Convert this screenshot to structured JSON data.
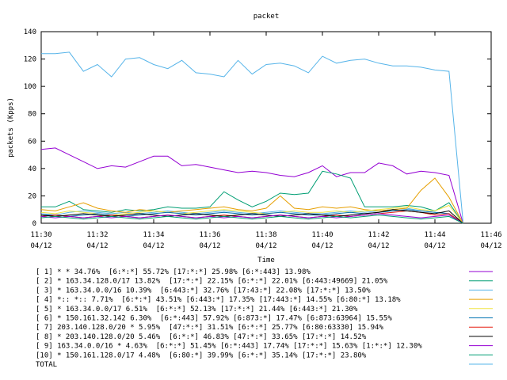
{
  "chart_data": {
    "type": "line",
    "title": "packet",
    "x_label": "Time",
    "y_label": "packets (Kpps)",
    "x": [
      "11:30",
      "11:30:30",
      "11:31",
      "11:31:30",
      "11:32",
      "11:32:30",
      "11:33",
      "11:33:30",
      "11:34",
      "11:34:30",
      "11:35",
      "11:35:30",
      "11:36",
      "11:36:30",
      "11:37",
      "11:37:30",
      "11:38",
      "11:38:30",
      "11:39",
      "11:39:30",
      "11:40",
      "11:40:30",
      "11:41",
      "11:41:30",
      "11:42",
      "11:42:30",
      "11:43",
      "11:43:30",
      "11:44",
      "11:44:30",
      "11:45"
    ],
    "xlim": [
      "11:30",
      "11:46"
    ],
    "xticks": [
      {
        "value": "11:30",
        "label": [
          "11:30",
          "04/12"
        ]
      },
      {
        "value": "11:32",
        "label": [
          "11:32",
          "04/12"
        ]
      },
      {
        "value": "11:34",
        "label": [
          "11:34",
          "04/12"
        ]
      },
      {
        "value": "11:36",
        "label": [
          "11:36",
          "04/12"
        ]
      },
      {
        "value": "11:38",
        "label": [
          "11:38",
          "04/12"
        ]
      },
      {
        "value": "11:40",
        "label": [
          "11:40",
          "04/12"
        ]
      },
      {
        "value": "11:42",
        "label": [
          "11:42",
          "04/12"
        ]
      },
      {
        "value": "11:44",
        "label": [
          "11:44",
          "04/12"
        ]
      },
      {
        "value": "11:46",
        "label": [
          "11:46",
          "04/12"
        ]
      }
    ],
    "ylim": [
      0,
      140
    ],
    "yticks": [
      0,
      20,
      40,
      60,
      80,
      100,
      120,
      140
    ],
    "grid": false,
    "series": [
      {
        "name": "[ 1] * * 34.76%  [6:*:*] 55.72% [17:*:*] 25.98% [6:*:443] 13.98%",
        "color": "#9400d3",
        "values": [
          54,
          55,
          50,
          45,
          40,
          42,
          41,
          45,
          49,
          49,
          42,
          43,
          41,
          39,
          37,
          38,
          37,
          35,
          34,
          37,
          42,
          34,
          37,
          37,
          44,
          42,
          36,
          38,
          37,
          35,
          0
        ]
      },
      {
        "name": "[ 2] * 163.34.128.0/17 13.82%  [17:*:*] 22.15% [6:*:*] 22.01% [6:443:49669] 21.05%",
        "color": "#009e73",
        "values": [
          12,
          12,
          16,
          10,
          9,
          8,
          10,
          9,
          10,
          12,
          11,
          11,
          12,
          23,
          17,
          12,
          16,
          22,
          21,
          22,
          38,
          36,
          33,
          12,
          12,
          12,
          13,
          12,
          9,
          15,
          0
        ]
      },
      {
        "name": "[ 3] * 163.34.0.0/16 10.39%  [6:443:*] 32.76% [17:43:*] 22.08% [17:*:*] 13.50%",
        "color": "#56b4e9",
        "values": [
          7,
          6,
          8,
          9,
          8,
          7,
          8,
          7,
          8,
          9,
          8,
          7,
          8,
          9,
          8,
          7,
          8,
          9,
          8,
          7,
          7,
          8,
          9,
          8,
          9,
          10,
          11,
          9,
          8,
          7,
          0
        ]
      },
      {
        "name": "[ 4] *:: *:: 7.71%  [6:*:*] 43.51% [6:443:*] 17.35% [17:443:*] 14.55% [6:80:*] 13.18%",
        "color": "#e69f00",
        "values": [
          10,
          9,
          12,
          15,
          11,
          9,
          8,
          10,
          9,
          8,
          9,
          10,
          11,
          12,
          10,
          9,
          11,
          20,
          11,
          10,
          12,
          11,
          12,
          10,
          9,
          10,
          11,
          24,
          33,
          19,
          0
        ]
      },
      {
        "name": "[ 5] * 163.34.0.0/17 6.51%  [6:*:*] 52.13% [17:*:*] 21.44% [6:443:*] 21.30%",
        "color": "#f0e442",
        "values": [
          8,
          7,
          9,
          8,
          7,
          6,
          7,
          8,
          9,
          8,
          7,
          8,
          9,
          10,
          9,
          8,
          7,
          8,
          9,
          8,
          8,
          9,
          8,
          9,
          10,
          11,
          12,
          10,
          9,
          13,
          0
        ]
      },
      {
        "name": "[ 6] * 150.161.32.142 6.30%  [6:*:443] 57.92% [6:873:*] 17.47% [6:873:63964] 15.55%",
        "color": "#0072b2",
        "values": [
          6,
          6,
          5,
          6,
          7,
          6,
          5,
          6,
          7,
          8,
          7,
          6,
          7,
          8,
          7,
          6,
          7,
          8,
          7,
          6,
          6,
          7,
          8,
          7,
          8,
          9,
          10,
          9,
          8,
          7,
          0
        ]
      },
      {
        "name": "[ 7] 203.140.128.0/20 * 5.95%  [47:*:*] 31.51% [6:*:*] 25.77% [6:80:63330] 15.94%",
        "color": "#e51e10",
        "values": [
          5,
          6,
          5,
          4,
          5,
          6,
          5,
          4,
          5,
          6,
          5,
          4,
          5,
          6,
          5,
          4,
          5,
          6,
          5,
          4,
          5,
          6,
          5,
          6,
          7,
          8,
          9,
          8,
          6,
          7,
          0
        ]
      },
      {
        "name": "[ 8] * 203.140.128.0/20 5.46%  [6:*:*] 46.83% [47:*:*] 33.65% [17:*:*] 14.52%",
        "color": "#000000",
        "values": [
          6,
          5,
          6,
          7,
          6,
          5,
          6,
          7,
          6,
          5,
          6,
          7,
          6,
          5,
          6,
          7,
          6,
          5,
          6,
          7,
          6,
          5,
          6,
          7,
          8,
          10,
          9,
          8,
          7,
          9,
          0
        ]
      },
      {
        "name": "[ 9] 163.34.0.0/16 * 4.63%  [6:*:*] 51.45% [6:*:443] 17.74% [17:*:*] 15.63% [1:*:*] 12.30%",
        "color": "#9400d3",
        "values": [
          5,
          4,
          5,
          4,
          5,
          4,
          5,
          4,
          5,
          6,
          5,
          4,
          5,
          4,
          5,
          4,
          5,
          6,
          5,
          4,
          5,
          4,
          5,
          6,
          7,
          6,
          5,
          4,
          5,
          6,
          0
        ]
      },
      {
        "name": "[10] * 150.161.128.0/17 4.48%  [6:80:*] 39.99% [6:*:*] 35.14% [17:*:*] 23.80%",
        "color": "#009e73",
        "values": [
          4,
          5,
          4,
          3,
          4,
          5,
          4,
          3,
          4,
          5,
          4,
          3,
          4,
          5,
          4,
          3,
          4,
          5,
          4,
          3,
          4,
          5,
          4,
          5,
          6,
          5,
          4,
          3,
          4,
          5,
          0
        ]
      },
      {
        "name": "TOTAL",
        "color": "#56b4e9",
        "values": [
          124,
          124,
          125,
          111,
          116,
          107,
          120,
          121,
          116,
          113,
          119,
          110,
          109,
          107,
          119,
          109,
          116,
          117,
          115,
          110,
          122,
          117,
          119,
          120,
          117,
          115,
          115,
          114,
          112,
          111,
          1
        ]
      }
    ]
  }
}
